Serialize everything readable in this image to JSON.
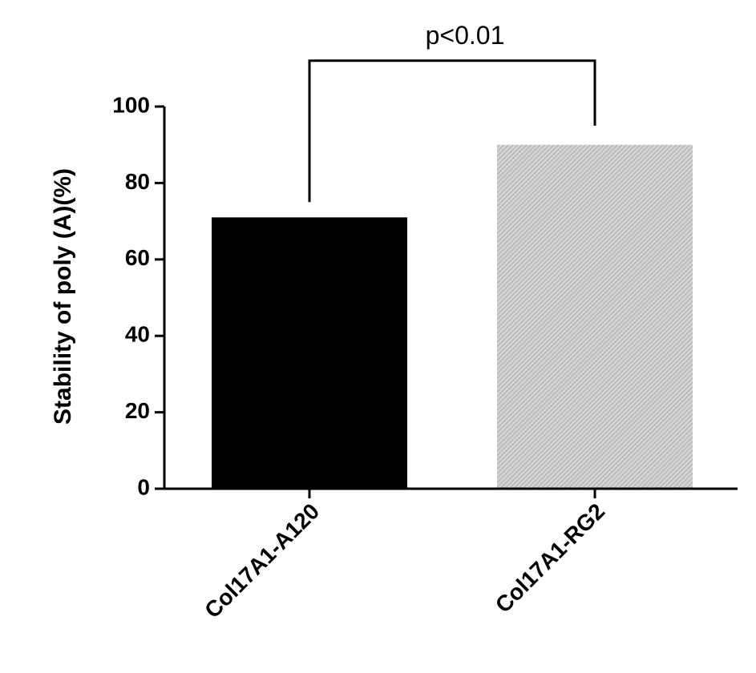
{
  "chart_data": {
    "type": "bar",
    "categories": [
      "Col17A1-A120",
      "Col17A1-RG2"
    ],
    "values": [
      71,
      90
    ],
    "bar_colors": [
      "#000000",
      "#c8c8c8"
    ],
    "ylabel": "Stability of poly (A)(%)",
    "xlabel": "",
    "ylim": [
      0,
      100
    ],
    "yticks": [
      "0",
      "20",
      "40",
      "60",
      "80",
      "100"
    ],
    "grid": false,
    "annotation": {
      "text": "p<0.01",
      "between": [
        "Col17A1-A120",
        "Col17A1-RG2"
      ],
      "bracket_y": 112,
      "left_end_y": 75,
      "right_end_y": 95
    }
  }
}
